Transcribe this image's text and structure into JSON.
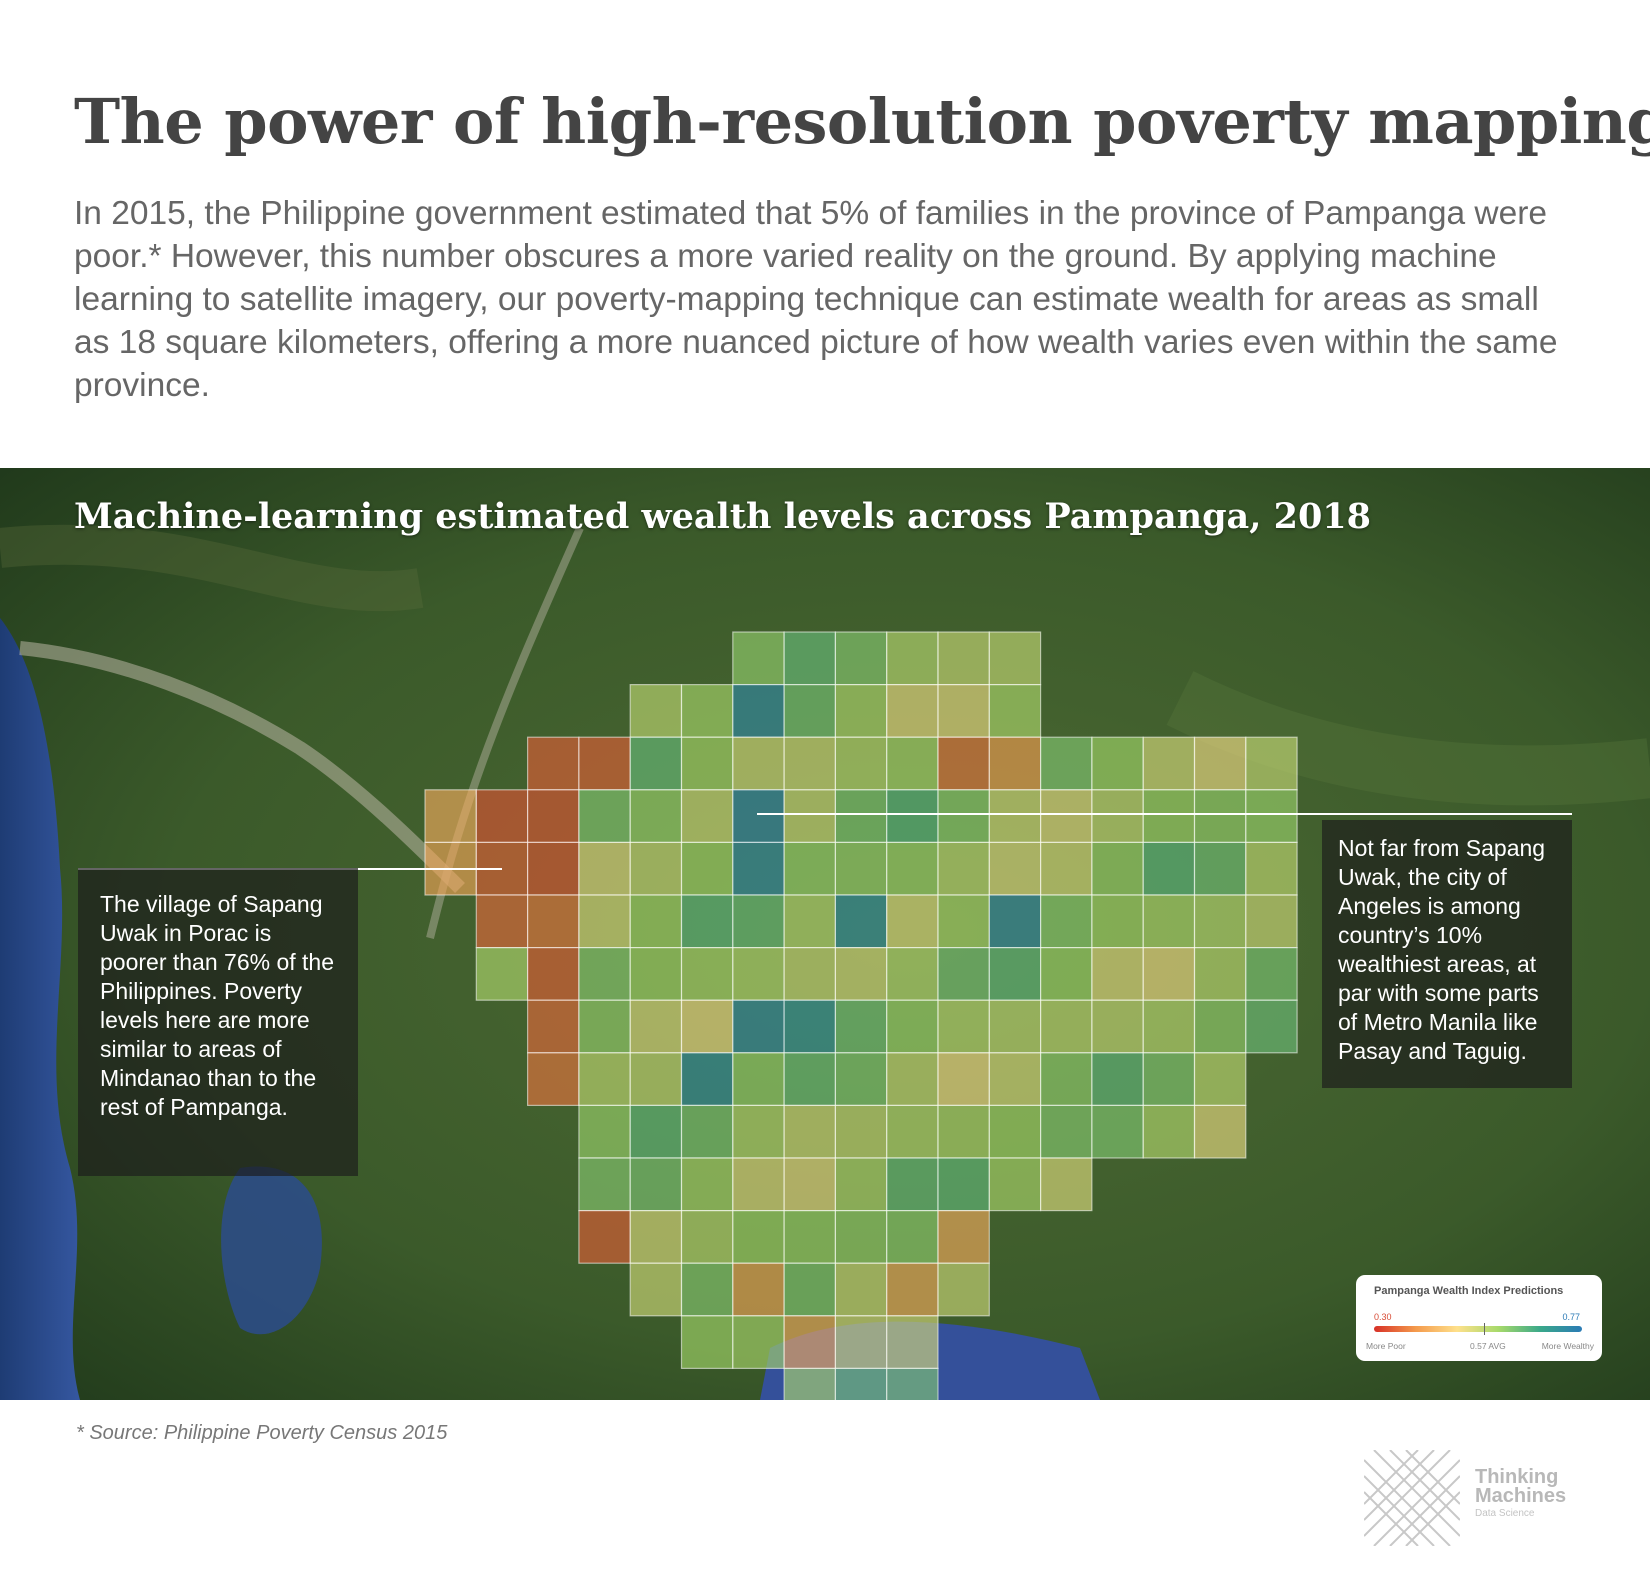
{
  "header": {
    "title": "The power of high-resolution poverty mapping",
    "intro": "In 2015, the Philippine government estimated that 5% of families in the province of Pampanga were poor.* However, this number obscures a more varied reality on the ground. By applying machine learning to satellite imagery, our poverty-mapping technique can estimate wealth for areas as small as 18 square kilometers, offering a more nuanced picture of how wealth varies even within the same province."
  },
  "map": {
    "title": "Machine-learning estimated wealth levels across Pampanga, 2018",
    "grid_rows": [
      {
        "row": 0,
        "cols": [
          14,
          15,
          16,
          17,
          18,
          19
        ]
      },
      {
        "row": 1,
        "cols": [
          12,
          13,
          14,
          15,
          16,
          17,
          18,
          19
        ]
      },
      {
        "row": 2,
        "cols": [
          10,
          11,
          12,
          13,
          14,
          15,
          16,
          17,
          18,
          19,
          20,
          21,
          22,
          23,
          24
        ]
      },
      {
        "row": 3,
        "cols": [
          8,
          9,
          10,
          11,
          12,
          13,
          14,
          15,
          16,
          17,
          18,
          19,
          20,
          21,
          22,
          23,
          24
        ]
      },
      {
        "row": 4,
        "cols": [
          8,
          9,
          10,
          11,
          12,
          13,
          14,
          15,
          16,
          17,
          18,
          19,
          20,
          21,
          22,
          23,
          24
        ]
      },
      {
        "row": 5,
        "cols": [
          9,
          10,
          11,
          12,
          13,
          14,
          15,
          16,
          17,
          18,
          19,
          20,
          21,
          22,
          23,
          24
        ]
      },
      {
        "row": 6,
        "cols": [
          9,
          10,
          11,
          12,
          13,
          14,
          15,
          16,
          17,
          18,
          19,
          20,
          21,
          22,
          23,
          24
        ]
      },
      {
        "row": 7,
        "cols": [
          10,
          11,
          12,
          13,
          14,
          15,
          16,
          17,
          18,
          19,
          20,
          21,
          22,
          23,
          24
        ]
      },
      {
        "row": 8,
        "cols": [
          10,
          11,
          12,
          13,
          14,
          15,
          16,
          17,
          18,
          19,
          20,
          21,
          22,
          23
        ]
      },
      {
        "row": 9,
        "cols": [
          11,
          12,
          13,
          14,
          15,
          16,
          17,
          18,
          19,
          20,
          21,
          22,
          23
        ]
      },
      {
        "row": 10,
        "cols": [
          11,
          12,
          13,
          14,
          15,
          16,
          17,
          18,
          19,
          20
        ]
      },
      {
        "row": 11,
        "cols": [
          11,
          12,
          13,
          14,
          15,
          16,
          17,
          18
        ]
      },
      {
        "row": 12,
        "cols": [
          12,
          13,
          14,
          15,
          16,
          17,
          18
        ]
      },
      {
        "row": 13,
        "cols": [
          13,
          14,
          15,
          16,
          17
        ]
      },
      {
        "row": 14,
        "cols": [
          15,
          16,
          17
        ]
      }
    ],
    "wealth_cells": [
      {
        "row": 1,
        "col": 14,
        "value": 0.74
      },
      {
        "row": 3,
        "col": 14,
        "value": 0.75
      },
      {
        "row": 4,
        "col": 14,
        "value": 0.74
      },
      {
        "row": 5,
        "col": 16,
        "value": 0.73
      },
      {
        "row": 5,
        "col": 19,
        "value": 0.74
      },
      {
        "row": 7,
        "col": 14,
        "value": 0.74
      },
      {
        "row": 7,
        "col": 15,
        "value": 0.72
      },
      {
        "row": 8,
        "col": 13,
        "value": 0.73
      },
      {
        "row": 2,
        "col": 18,
        "value": 0.36
      },
      {
        "row": 2,
        "col": 19,
        "value": 0.4
      },
      {
        "row": 2,
        "col": 10,
        "value": 0.34
      },
      {
        "row": 2,
        "col": 11,
        "value": 0.34
      },
      {
        "row": 3,
        "col": 9,
        "value": 0.33
      },
      {
        "row": 3,
        "col": 10,
        "value": 0.33
      },
      {
        "row": 4,
        "col": 9,
        "value": 0.34
      },
      {
        "row": 4,
        "col": 10,
        "value": 0.33
      },
      {
        "row": 3,
        "col": 8,
        "value": 0.42
      },
      {
        "row": 4,
        "col": 8,
        "value": 0.41
      },
      {
        "row": 5,
        "col": 9,
        "value": 0.35
      },
      {
        "row": 5,
        "col": 10,
        "value": 0.36
      },
      {
        "row": 6,
        "col": 10,
        "value": 0.34
      },
      {
        "row": 7,
        "col": 10,
        "value": 0.35
      },
      {
        "row": 8,
        "col": 10,
        "value": 0.36
      },
      {
        "row": 11,
        "col": 11,
        "value": 0.34
      },
      {
        "row": 12,
        "col": 14,
        "value": 0.41
      },
      {
        "row": 13,
        "col": 15,
        "value": 0.42
      },
      {
        "row": 11,
        "col": 18,
        "value": 0.42
      },
      {
        "row": 12,
        "col": 17,
        "value": 0.42
      }
    ],
    "annotation_left": "The village of Sapang Uwak in Porac is poorer than 76% of the Philippines. Poverty levels here are more similar to areas of Mindanao than to the rest of Pampanga.",
    "annotation_right": "Not far from Sapang Uwak, the city of Angeles is among country’s 10% wealthiest areas, at par with some parts of Metro Manila like Pasay and Taguig.",
    "legend": {
      "title": "Pampanga Wealth Index Predictions",
      "min": "0.30",
      "max": "0.77",
      "avg": "0.57 AVG",
      "poor_label": "More Poor",
      "wealthy_label": "More Wealthy",
      "min_value": 0.3,
      "max_value": 0.77,
      "avg_value": 0.57,
      "colors": [
        "#d73027",
        "#f49a4c",
        "#fee08b",
        "#a6d96a",
        "#3aa88a",
        "#2b7bb6"
      ]
    }
  },
  "footer": {
    "source": "* Source: Philippine Poverty Census 2015",
    "logo_line1": "Thinking",
    "logo_line2": "Machines",
    "logo_sub": "Data Science"
  }
}
